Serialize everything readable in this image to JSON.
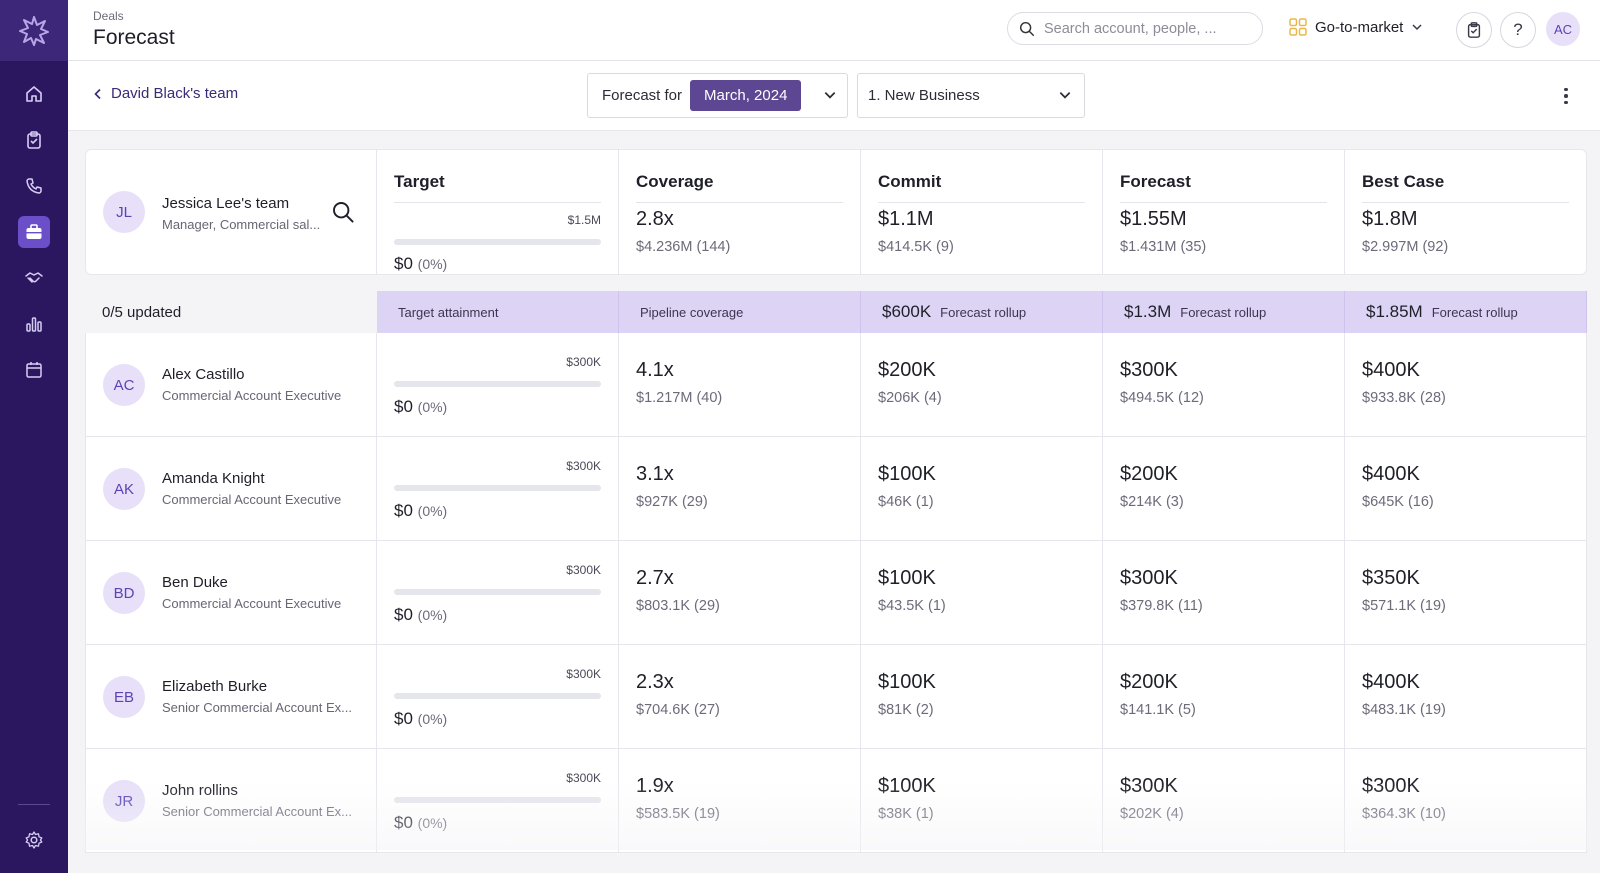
{
  "sidebar": {
    "logo": "starburst-logo",
    "items": [
      {
        "icon": "home-icon"
      },
      {
        "icon": "clipboard-icon"
      },
      {
        "icon": "phone-icon"
      },
      {
        "icon": "briefcase-icon",
        "active": true
      },
      {
        "icon": "handshake-icon"
      },
      {
        "icon": "bar-chart-icon"
      },
      {
        "icon": "calendar-icon"
      }
    ],
    "settings_icon": "gear-icon"
  },
  "header": {
    "breadcrumb": "Deals",
    "title": "Forecast",
    "search_placeholder": "Search account, people, ...",
    "workspace": "Go-to-market",
    "user_initials": "AC"
  },
  "subheader": {
    "back_label": "David Black's team",
    "forecast_for_label": "Forecast for",
    "period": "March, 2024",
    "category": "1. New Business"
  },
  "columns": [
    "Target",
    "Coverage",
    "Commit",
    "Forecast",
    "Best Case"
  ],
  "team": {
    "initials": "JL",
    "name": "Jessica Lee's team",
    "role": "Manager, Commercial sal...",
    "target": {
      "amount": "$1.5M",
      "value": "$0",
      "pct": "(0%)",
      "fill": 0
    },
    "coverage": {
      "main": "2.8x",
      "sub": "$4.236M (144)"
    },
    "commit": {
      "main": "$1.1M",
      "sub": "$414.5K (9)"
    },
    "forecast": {
      "main": "$1.55M",
      "sub": "$1.431M (35)"
    },
    "best_case": {
      "main": "$1.8M",
      "sub": "$2.997M (92)"
    }
  },
  "band": {
    "updated": "0/5 updated",
    "target_label": "Target attainment",
    "coverage_label": "Pipeline coverage",
    "commit_amt": "$600K",
    "forecast_amt": "$1.3M",
    "best_amt": "$1.85M",
    "rollup_label": "Forecast rollup"
  },
  "people": [
    {
      "initials": "AC",
      "name": "Alex Castillo",
      "role": "Commercial Account Executive",
      "target": {
        "amount": "$300K",
        "value": "$0",
        "pct": "(0%)"
      },
      "coverage": {
        "main": "4.1x",
        "sub": "$1.217M (40)"
      },
      "commit": {
        "main": "$200K",
        "sub": "$206K (4)"
      },
      "forecast": {
        "main": "$300K",
        "sub": "$494.5K (12)"
      },
      "best_case": {
        "main": "$400K",
        "sub": "$933.8K (28)"
      }
    },
    {
      "initials": "AK",
      "name": "Amanda Knight",
      "role": "Commercial Account Executive",
      "target": {
        "amount": "$300K",
        "value": "$0",
        "pct": "(0%)"
      },
      "coverage": {
        "main": "3.1x",
        "sub": "$927K (29)"
      },
      "commit": {
        "main": "$100K",
        "sub": "$46K (1)"
      },
      "forecast": {
        "main": "$200K",
        "sub": "$214K (3)"
      },
      "best_case": {
        "main": "$400K",
        "sub": "$645K (16)"
      }
    },
    {
      "initials": "BD",
      "name": "Ben Duke",
      "role": "Commercial Account Executive",
      "target": {
        "amount": "$300K",
        "value": "$0",
        "pct": "(0%)"
      },
      "coverage": {
        "main": "2.7x",
        "sub": "$803.1K (29)"
      },
      "commit": {
        "main": "$100K",
        "sub": "$43.5K (1)"
      },
      "forecast": {
        "main": "$300K",
        "sub": "$379.8K (11)"
      },
      "best_case": {
        "main": "$350K",
        "sub": "$571.1K (19)"
      }
    },
    {
      "initials": "EB",
      "name": "Elizabeth Burke",
      "role": "Senior Commercial Account Ex...",
      "target": {
        "amount": "$300K",
        "value": "$0",
        "pct": "(0%)"
      },
      "coverage": {
        "main": "2.3x",
        "sub": "$704.6K (27)"
      },
      "commit": {
        "main": "$100K",
        "sub": "$81K (2)"
      },
      "forecast": {
        "main": "$200K",
        "sub": "$141.1K (5)"
      },
      "best_case": {
        "main": "$400K",
        "sub": "$483.1K (19)"
      }
    },
    {
      "initials": "JR",
      "name": "John rollins",
      "role": "Senior Commercial Account Ex...",
      "target": {
        "amount": "$300K",
        "value": "$0",
        "pct": "(0%)"
      },
      "coverage": {
        "main": "1.9x",
        "sub": "$583.5K (19)"
      },
      "commit": {
        "main": "$100K",
        "sub": "$38K (1)"
      },
      "forecast": {
        "main": "$300K",
        "sub": "$202K (4)"
      },
      "best_case": {
        "main": "$300K",
        "sub": "$364.3K (10)"
      }
    }
  ],
  "colors": {
    "sidebar": "#2b1660",
    "accent": "#5d4692",
    "band": "#ddd3f5",
    "avatar_bg": "#e7e0f8"
  }
}
